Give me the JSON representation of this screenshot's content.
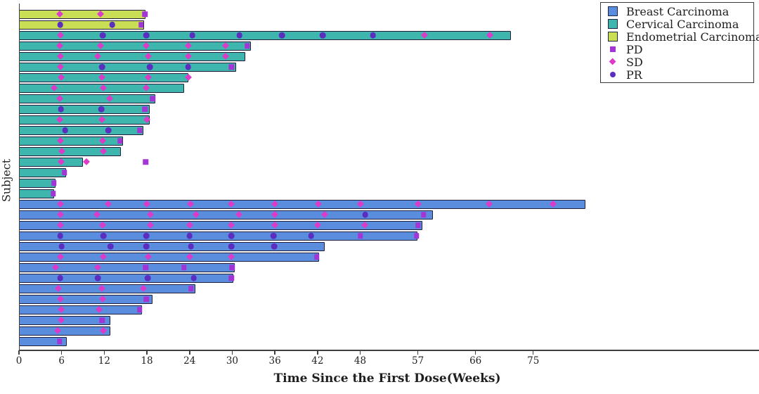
{
  "chart_data": {
    "type": "bar",
    "subtype": "swimmer-plot",
    "orientation": "horizontal",
    "title": "",
    "xlabel": "Time Since the First Dose(Weeks)",
    "ylabel": "Subject",
    "x_ticks": [
      0,
      6,
      12,
      18,
      24,
      30,
      36,
      42,
      48,
      57,
      66,
      75
    ],
    "xlim": [
      0,
      103
    ],
    "grid": false,
    "legend_position": "top-right",
    "groups": [
      {
        "name": "Breast Carcinoma",
        "color": "#5b8ddf"
      },
      {
        "name": "Cervical Carcinoma",
        "color": "#3eb5ad"
      },
      {
        "name": "Endometrial Carcinoma",
        "color": "#c9de55"
      }
    ],
    "marker_types": [
      {
        "name": "PD",
        "shape": "square",
        "color": "#a335d6"
      },
      {
        "name": "SD",
        "shape": "diamond",
        "color": "#dc3bc9"
      },
      {
        "name": "PR",
        "shape": "circle",
        "color": "#5c2ec0"
      }
    ],
    "bars": [
      {
        "group": "Endometrial Carcinoma",
        "length_weeks": 17.8,
        "markers": [
          {
            "type": "SD",
            "week": 5.7
          },
          {
            "type": "SD",
            "week": 11.5
          },
          {
            "type": "PD",
            "week": 17.7
          }
        ]
      },
      {
        "group": "Endometrial Carcinoma",
        "length_weeks": 17.6,
        "markers": [
          {
            "type": "PR",
            "week": 5.8
          },
          {
            "type": "PR",
            "week": 13.1
          },
          {
            "type": "PD",
            "week": 17.2
          }
        ]
      },
      {
        "group": "Cervical Carcinoma",
        "length_weeks": 71.5,
        "markers": [
          {
            "type": "SD",
            "week": 5.8
          },
          {
            "type": "PR",
            "week": 11.8
          },
          {
            "type": "PR",
            "week": 17.9
          },
          {
            "type": "PR",
            "week": 24.4
          },
          {
            "type": "PR",
            "week": 31.0
          },
          {
            "type": "PR",
            "week": 37.0
          },
          {
            "type": "PR",
            "week": 42.7
          },
          {
            "type": "PR",
            "week": 50.0
          },
          {
            "type": "SD",
            "week": 58.0
          },
          {
            "type": "SD",
            "week": 68.2
          }
        ]
      },
      {
        "group": "Cervical Carcinoma",
        "length_weeks": 32.6,
        "markers": [
          {
            "type": "SD",
            "week": 5.7
          },
          {
            "type": "SD",
            "week": 11.5
          },
          {
            "type": "SD",
            "week": 17.9
          },
          {
            "type": "SD",
            "week": 23.8
          },
          {
            "type": "SD",
            "week": 29.1
          },
          {
            "type": "PD",
            "week": 32.1
          }
        ]
      },
      {
        "group": "Cervical Carcinoma",
        "length_weeks": 31.8,
        "markers": [
          {
            "type": "SD",
            "week": 5.8
          },
          {
            "type": "SD",
            "week": 11.1
          },
          {
            "type": "SD",
            "week": 18.2
          },
          {
            "type": "SD",
            "week": 23.8
          },
          {
            "type": "SD",
            "week": 29.1
          }
        ]
      },
      {
        "group": "Cervical Carcinoma",
        "length_weeks": 30.5,
        "markers": [
          {
            "type": "SD",
            "week": 5.8
          },
          {
            "type": "PR",
            "week": 11.7
          },
          {
            "type": "PR",
            "week": 18.4
          },
          {
            "type": "PR",
            "week": 23.8
          },
          {
            "type": "PD",
            "week": 29.9
          }
        ]
      },
      {
        "group": "Cervical Carcinoma",
        "length_weeks": 23.8,
        "markers": [
          {
            "type": "SD",
            "week": 5.9
          },
          {
            "type": "SD",
            "week": 11.7
          },
          {
            "type": "SD",
            "week": 18.2
          },
          {
            "type": "SD",
            "week": 23.8
          }
        ]
      },
      {
        "group": "Cervical Carcinoma",
        "length_weeks": 23.2,
        "markers": [
          {
            "type": "SD",
            "week": 4.9
          },
          {
            "type": "SD",
            "week": 11.9
          },
          {
            "type": "SD",
            "week": 17.9
          }
        ]
      },
      {
        "group": "Cervical Carcinoma",
        "length_weeks": 19.2,
        "markers": [
          {
            "type": "SD",
            "week": 5.7
          },
          {
            "type": "SD",
            "week": 12.8
          },
          {
            "type": "PD",
            "week": 18.8
          }
        ]
      },
      {
        "group": "Cervical Carcinoma",
        "length_weeks": 18.4,
        "markers": [
          {
            "type": "PR",
            "week": 5.9
          },
          {
            "type": "PR",
            "week": 11.6
          },
          {
            "type": "PD",
            "week": 17.7
          }
        ]
      },
      {
        "group": "Cervical Carcinoma",
        "length_weeks": 18.4,
        "markers": [
          {
            "type": "SD",
            "week": 5.7
          },
          {
            "type": "SD",
            "week": 11.7
          },
          {
            "type": "SD",
            "week": 18.0
          }
        ]
      },
      {
        "group": "Cervical Carcinoma",
        "length_weeks": 17.5,
        "markers": [
          {
            "type": "PR",
            "week": 6.5
          },
          {
            "type": "PR",
            "week": 12.6
          },
          {
            "type": "PD",
            "week": 17.0
          }
        ]
      },
      {
        "group": "Cervical Carcinoma",
        "length_weeks": 14.6,
        "markers": [
          {
            "type": "SD",
            "week": 5.8
          },
          {
            "type": "SD",
            "week": 11.8
          },
          {
            "type": "PD",
            "week": 14.2
          }
        ]
      },
      {
        "group": "Cervical Carcinoma",
        "length_weeks": 14.3,
        "markers": [
          {
            "type": "SD",
            "week": 6.0
          },
          {
            "type": "SD",
            "week": 11.9
          }
        ]
      },
      {
        "group": "Cervical Carcinoma",
        "length_weeks": 9.0,
        "markers": [
          {
            "type": "SD",
            "week": 5.9
          },
          {
            "type": "SD",
            "week": 9.5
          },
          {
            "type": "PD",
            "week": 17.8
          }
        ]
      },
      {
        "group": "Cervical Carcinoma",
        "length_weeks": 6.6,
        "markers": [
          {
            "type": "PD",
            "week": 6.4
          }
        ]
      },
      {
        "group": "Cervical Carcinoma",
        "length_weeks": 5.1,
        "markers": [
          {
            "type": "PD",
            "week": 4.9
          }
        ]
      },
      {
        "group": "Cervical Carcinoma",
        "length_weeks": 4.9,
        "markers": [
          {
            "type": "PD",
            "week": 4.8
          }
        ]
      },
      {
        "group": "Breast Carcinoma",
        "length_weeks": 83.1,
        "markers": [
          {
            "type": "SD",
            "week": 5.8
          },
          {
            "type": "SD",
            "week": 12.6
          },
          {
            "type": "SD",
            "week": 18.0
          },
          {
            "type": "SD",
            "week": 24.1
          },
          {
            "type": "SD",
            "week": 29.9
          },
          {
            "type": "SD",
            "week": 36.0
          },
          {
            "type": "SD",
            "week": 42.1
          },
          {
            "type": "SD",
            "week": 48.1
          },
          {
            "type": "SD",
            "week": 57.0
          },
          {
            "type": "SD",
            "week": 68.1
          },
          {
            "type": "SD",
            "week": 78.1
          }
        ]
      },
      {
        "group": "Breast Carcinoma",
        "length_weeks": 59.3,
        "markers": [
          {
            "type": "SD",
            "week": 5.8
          },
          {
            "type": "SD",
            "week": 11.0
          },
          {
            "type": "SD",
            "week": 18.5
          },
          {
            "type": "SD",
            "week": 24.9
          },
          {
            "type": "SD",
            "week": 30.9
          },
          {
            "type": "SD",
            "week": 36.0
          },
          {
            "type": "SD",
            "week": 43.0
          },
          {
            "type": "PR",
            "week": 48.8
          },
          {
            "type": "PD",
            "week": 57.9
          }
        ]
      },
      {
        "group": "Breast Carcinoma",
        "length_weeks": 57.7,
        "markers": [
          {
            "type": "SD",
            "week": 5.8
          },
          {
            "type": "SD",
            "week": 11.8
          },
          {
            "type": "SD",
            "week": 18.5
          },
          {
            "type": "SD",
            "week": 24.0
          },
          {
            "type": "SD",
            "week": 29.9
          },
          {
            "type": "SD",
            "week": 36.0
          },
          {
            "type": "SD",
            "week": 42.0
          },
          {
            "type": "SD",
            "week": 48.7
          },
          {
            "type": "PD",
            "week": 57.0
          }
        ]
      },
      {
        "group": "Breast Carcinoma",
        "length_weeks": 56.9,
        "markers": [
          {
            "type": "PR",
            "week": 5.8
          },
          {
            "type": "PR",
            "week": 11.9
          },
          {
            "type": "PR",
            "week": 17.9
          },
          {
            "type": "PR",
            "week": 24.0
          },
          {
            "type": "PR",
            "week": 29.9
          },
          {
            "type": "PR",
            "week": 35.8
          },
          {
            "type": "PR",
            "week": 41.1
          },
          {
            "type": "PD",
            "week": 48.0
          },
          {
            "type": "PD",
            "week": 56.8
          }
        ]
      },
      {
        "group": "Breast Carcinoma",
        "length_weeks": 43.0,
        "markers": [
          {
            "type": "PR",
            "week": 6.0
          },
          {
            "type": "PR",
            "week": 12.9
          },
          {
            "type": "PR",
            "week": 17.9
          },
          {
            "type": "PR",
            "week": 24.2
          },
          {
            "type": "PR",
            "week": 29.9
          },
          {
            "type": "PR",
            "week": 35.9
          }
        ]
      },
      {
        "group": "Breast Carcinoma",
        "length_weeks": 42.2,
        "markers": [
          {
            "type": "SD",
            "week": 5.8
          },
          {
            "type": "SD",
            "week": 11.9
          },
          {
            "type": "SD",
            "week": 18.2
          },
          {
            "type": "SD",
            "week": 24.0
          },
          {
            "type": "SD",
            "week": 29.9
          },
          {
            "type": "PD",
            "week": 41.9
          }
        ]
      },
      {
        "group": "Breast Carcinoma",
        "length_weeks": 30.4,
        "markers": [
          {
            "type": "SD",
            "week": 5.1
          },
          {
            "type": "SD",
            "week": 11.1
          },
          {
            "type": "PD",
            "week": 17.8
          },
          {
            "type": "PD",
            "week": 23.2
          },
          {
            "type": "PD",
            "week": 30.0
          }
        ]
      },
      {
        "group": "Breast Carcinoma",
        "length_weeks": 30.2,
        "markers": [
          {
            "type": "PR",
            "week": 5.8
          },
          {
            "type": "PR",
            "week": 11.1
          },
          {
            "type": "PR",
            "week": 18.1
          },
          {
            "type": "PR",
            "week": 24.6
          },
          {
            "type": "PD",
            "week": 29.9
          }
        ]
      },
      {
        "group": "Breast Carcinoma",
        "length_weeks": 24.8,
        "markers": [
          {
            "type": "SD",
            "week": 5.5
          },
          {
            "type": "SD",
            "week": 11.7
          },
          {
            "type": "SD",
            "week": 17.5
          },
          {
            "type": "PD",
            "week": 24.2
          }
        ]
      },
      {
        "group": "Breast Carcinoma",
        "length_weeks": 18.8,
        "markers": [
          {
            "type": "SD",
            "week": 5.8
          },
          {
            "type": "SD",
            "week": 11.8
          },
          {
            "type": "PD",
            "week": 17.9
          }
        ]
      },
      {
        "group": "Breast Carcinoma",
        "length_weeks": 17.3,
        "markers": [
          {
            "type": "SD",
            "week": 5.9
          },
          {
            "type": "SD",
            "week": 11.3
          },
          {
            "type": "PD",
            "week": 17.0
          }
        ]
      },
      {
        "group": "Breast Carcinoma",
        "length_weeks": 12.9,
        "markers": [
          {
            "type": "SD",
            "week": 5.9
          },
          {
            "type": "PD",
            "week": 11.7
          }
        ]
      },
      {
        "group": "Breast Carcinoma",
        "length_weeks": 12.9,
        "markers": [
          {
            "type": "SD",
            "week": 5.4
          },
          {
            "type": "SD",
            "week": 11.9
          }
        ]
      },
      {
        "group": "Breast Carcinoma",
        "length_weeks": 6.7,
        "markers": [
          {
            "type": "PD",
            "week": 5.7
          }
        ]
      }
    ]
  },
  "legend": {
    "series_labels": [
      "Breast Carcinoma",
      "Cervical Carcinoma",
      "Endometrial Carcinoma"
    ],
    "marker_labels": [
      "PD",
      "SD",
      "PR"
    ]
  },
  "colors": {
    "breast": "#5b8ddf",
    "cervical": "#3eb5ad",
    "endometrial": "#c9de55",
    "pd": "#a335d6",
    "sd": "#dc3bc9",
    "pr": "#5c2ec0",
    "bar_border": "#20203c",
    "axis": "#3f3f3f"
  }
}
